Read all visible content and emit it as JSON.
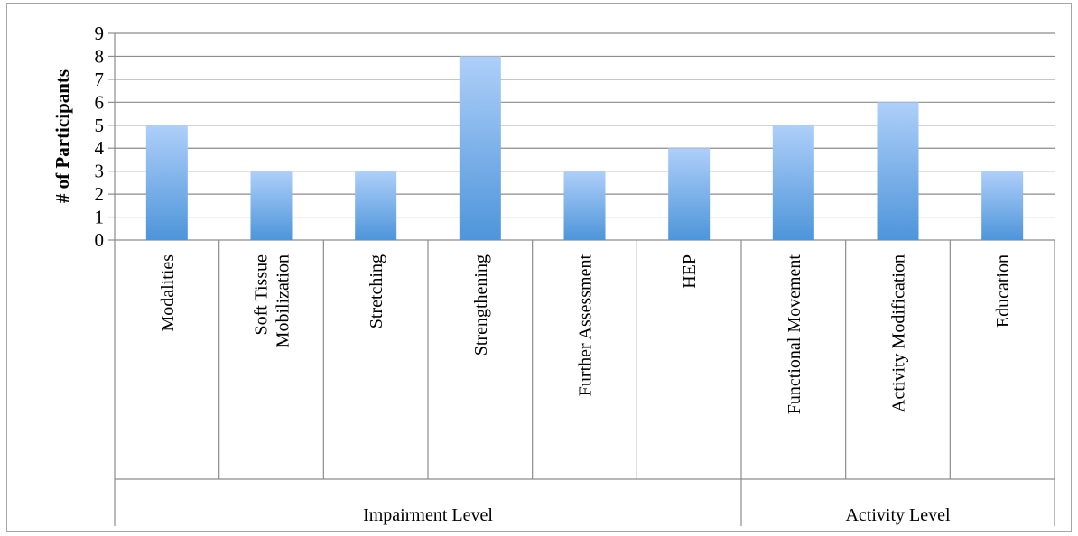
{
  "chart_data": {
    "type": "bar",
    "categories": [
      "Modalities",
      "Soft Tissue Mobilization",
      "Stretching",
      "Strengthening",
      "Further Assessment",
      "HEP",
      "Functional Movement",
      "Activity Modification",
      "Education"
    ],
    "category_label_lines": [
      [
        "Modalities"
      ],
      [
        "Soft Tissue",
        "Mobilization"
      ],
      [
        "Stretching"
      ],
      [
        "Strengthening"
      ],
      [
        "Further Assessment"
      ],
      [
        "HEP"
      ],
      [
        "Functional Movement"
      ],
      [
        "Activity Modification"
      ],
      [
        "Education"
      ]
    ],
    "values": [
      5,
      3,
      3,
      8,
      3,
      4,
      5,
      6,
      3
    ],
    "groups": [
      {
        "label": "Impairment Level",
        "categories": [
          0,
          1,
          2,
          3,
          4,
          5
        ]
      },
      {
        "label": "Activity Level",
        "categories": [
          6,
          7,
          8
        ]
      }
    ],
    "title": "",
    "xlabel": "",
    "ylabel": "# of Participants",
    "ylim": [
      0,
      9
    ],
    "yticks": [
      0,
      1,
      2,
      3,
      4,
      5,
      6,
      7,
      8,
      9
    ],
    "grid": true,
    "legend": "none",
    "colors": {
      "bar_top": "#aecff9",
      "bar_bottom": "#4e95da",
      "grid": "#8c8c8c",
      "axis": "#8c8c8c",
      "frame": "#a6a6a6"
    }
  }
}
